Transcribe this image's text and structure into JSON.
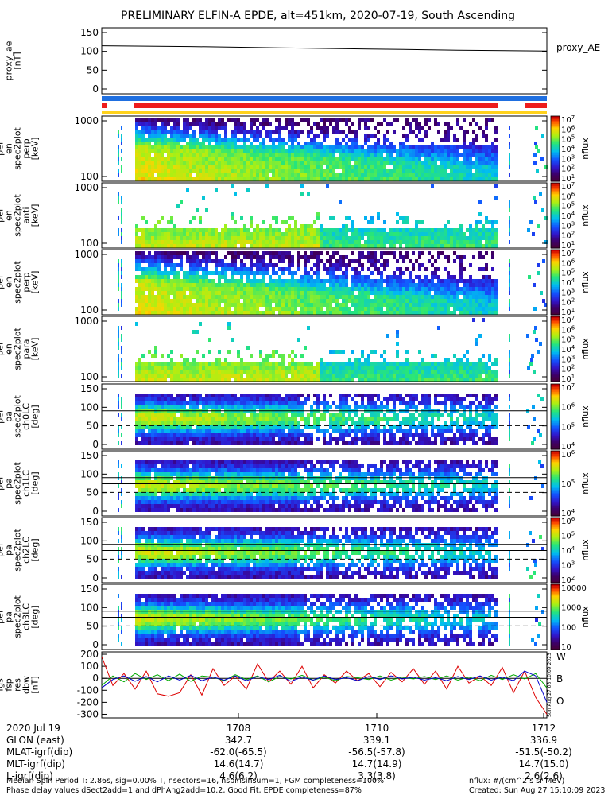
{
  "title": "PRELIMINARY ELFIN-A EPDE, alt=451km, 2020-07-19, South Ascending",
  "colors": {
    "blue_bar": "#1f6fe0",
    "red_bar": "#ee1c1c",
    "yellow_bar": "#ffd21c",
    "wave_red": "#dd0000",
    "wave_green": "#00aa00",
    "wave_blue": "#0000cc"
  },
  "chart_data": [
    {
      "type": "line",
      "id": "proxy_ae",
      "ylabel": "proxy_ae\n[nT]",
      "legend": "proxy_AE",
      "ylim": [
        -10,
        155
      ],
      "yticks": [
        "150",
        "100",
        "50",
        "0"
      ],
      "x": [
        0,
        0.2,
        0.4,
        0.6,
        0.8,
        1.0
      ],
      "values": [
        110,
        108,
        105,
        102,
        99,
        97
      ]
    },
    {
      "type": "heatmap",
      "id": "en_perp_top",
      "ylabel": "ela\npef\nen\nspec2plot\nperp\n[keV]",
      "yticks": [
        "1000",
        "100"
      ],
      "colorbar": [
        "10^7",
        "10^6",
        "10^5",
        "10^4",
        "10^3",
        "10^2",
        "10^1"
      ],
      "zlabel": "nflux",
      "profile": "strong"
    },
    {
      "type": "heatmap",
      "id": "en_anti",
      "ylabel": "ela\npef\nen\nspec2plot\nanti\n[keV]",
      "yticks": [
        "1000",
        "100"
      ],
      "colorbar": [
        "10^7",
        "10^6",
        "10^5",
        "10^4",
        "10^3",
        "10^2",
        "10^1"
      ],
      "zlabel": "nflux",
      "profile": "weak"
    },
    {
      "type": "heatmap",
      "id": "en_perp_2",
      "ylabel": "ela\npef\nen\nspec2plot\nperp\n[keV]",
      "yticks": [
        "1000",
        "100"
      ],
      "colorbar": [
        "10^7",
        "10^6",
        "10^5",
        "10^4",
        "10^3",
        "10^2",
        "10^1"
      ],
      "zlabel": "nflux",
      "profile": "strong"
    },
    {
      "type": "heatmap",
      "id": "en_para",
      "ylabel": "ela\npef\nen\nspec2plot\npara\n[keV]",
      "yticks": [
        "1000",
        "100"
      ],
      "colorbar": [
        "10^7",
        "10^6",
        "10^5",
        "10^4",
        "10^3",
        "10^2",
        "10^1"
      ],
      "zlabel": "nflux",
      "profile": "weak"
    },
    {
      "type": "heatmap",
      "id": "pa_ch0",
      "ylabel": "ela\npef\npa\nspec2plot\nch0LC\n[deg]",
      "yticks": [
        "150",
        "100",
        "50",
        "0"
      ],
      "colorbar": [
        "10^7",
        "10^6",
        "10^5",
        "10^4"
      ],
      "zlabel": "nflux",
      "profile": "pa0"
    },
    {
      "type": "heatmap",
      "id": "pa_ch1",
      "ylabel": "ela\npef\npa\nspec2plot\nch1LC\n[deg]",
      "yticks": [
        "150",
        "100",
        "50",
        "0"
      ],
      "colorbar": [
        "10^6",
        "10^5",
        "10^4"
      ],
      "zlabel": "nflux",
      "profile": "pa1"
    },
    {
      "type": "heatmap",
      "id": "pa_ch2",
      "ylabel": "ela\npef\npa\nspec2plot\nch2LC\n[deg]",
      "yticks": [
        "150",
        "100",
        "50",
        "0"
      ],
      "colorbar": [
        "10^6",
        "10^5",
        "10^4",
        "10^3",
        "10^2"
      ],
      "zlabel": "nflux",
      "profile": "pa2"
    },
    {
      "type": "heatmap",
      "id": "pa_ch3",
      "ylabel": "ela\npef\npa\nspec2plot\nch3LC\n[deg]",
      "yticks": [
        "150",
        "100",
        "50",
        "0"
      ],
      "colorbar": [
        "10000",
        "1000",
        "100",
        "10"
      ],
      "zlabel": "nflux",
      "profile": "pa3"
    },
    {
      "type": "line",
      "id": "fgs_res",
      "ylabel": "ela\nfgs\nfsp\nres\ndbw\n[nT]",
      "ylim": [
        -330,
        220
      ],
      "yticks": [
        "200",
        "100",
        "0",
        "-100",
        "-200",
        "-300"
      ],
      "legend_labels": [
        "W",
        "B",
        "O"
      ],
      "series": [
        {
          "name": "W",
          "values": [
            180,
            -60,
            40,
            -90,
            60,
            -130,
            -150,
            -120,
            30,
            -140,
            80,
            -60,
            20,
            -90,
            120,
            -30,
            60,
            -50,
            100,
            -80,
            30,
            -40,
            60,
            -20,
            40,
            -70,
            50,
            -30,
            80,
            -50,
            60,
            -90,
            100,
            -40,
            20,
            -60,
            90,
            -120,
            60,
            -160,
            -300
          ]
        },
        {
          "name": "B",
          "values": [
            -60,
            20,
            -30,
            40,
            -10,
            30,
            -20,
            35,
            -25,
            20,
            10,
            -20,
            30,
            -10,
            20,
            -30,
            15,
            -5,
            25,
            -15,
            10,
            -20,
            15,
            5,
            -10,
            20,
            -15,
            10,
            -5,
            15,
            -10,
            20,
            -15,
            10,
            -20,
            25,
            -10,
            30,
            -5,
            40,
            -80
          ]
        },
        {
          "name": "O",
          "values": [
            -80,
            -10,
            20,
            -25,
            15,
            -30,
            20,
            -15,
            25,
            -20,
            10,
            -15,
            20,
            -20,
            15,
            -10,
            25,
            -25,
            10,
            -15,
            20,
            -10,
            5,
            -20,
            15,
            -10,
            20,
            -5,
            10,
            -15,
            5,
            -20,
            15,
            -10,
            20,
            -15,
            10,
            -20,
            60,
            20,
            -200
          ]
        }
      ]
    }
  ],
  "time_axis": {
    "ticks": [
      {
        "label": "1708"
      },
      {
        "label": "1710"
      },
      {
        "label": "1712"
      }
    ],
    "rows": [
      {
        "label": "2020 Jul 19",
        "v": [
          "1708",
          "1710",
          "1712"
        ]
      },
      {
        "label": "GLON (east)",
        "v": [
          "342.7",
          "339.1",
          "336.9"
        ]
      },
      {
        "label": "MLAT-igrf(dip)",
        "v": [
          "-62.0(-65.5)",
          "-56.5(-57.8)",
          "-51.5(-50.2)"
        ]
      },
      {
        "label": "MLT-igrf(dip)",
        "v": [
          "14.6(14.7)",
          "14.7(14.9)",
          "14.7(15.0)"
        ]
      },
      {
        "label": "L-igrf(dip)",
        "v": [
          "4.6(6.2)",
          "3.3(3.8)",
          "2.6(2.6)"
        ]
      }
    ]
  },
  "footer": {
    "line1": "Median Spin Period T: 2.86s, sig=0.00% T, nsectors=16, nspinsinsum=1, FGM completeness=100%",
    "line2": "Phase delay values dSect2add=1 and dPhAng2add=10.2, Good Fit, EPDE completeness=87%",
    "right1": "nflux: #/(cm^2 s sr MeV)",
    "right2": "Created: Sun Aug 27 15:10:09 2023",
    "side_stamp": "Sun Aug 27 08:10:09 2023"
  }
}
